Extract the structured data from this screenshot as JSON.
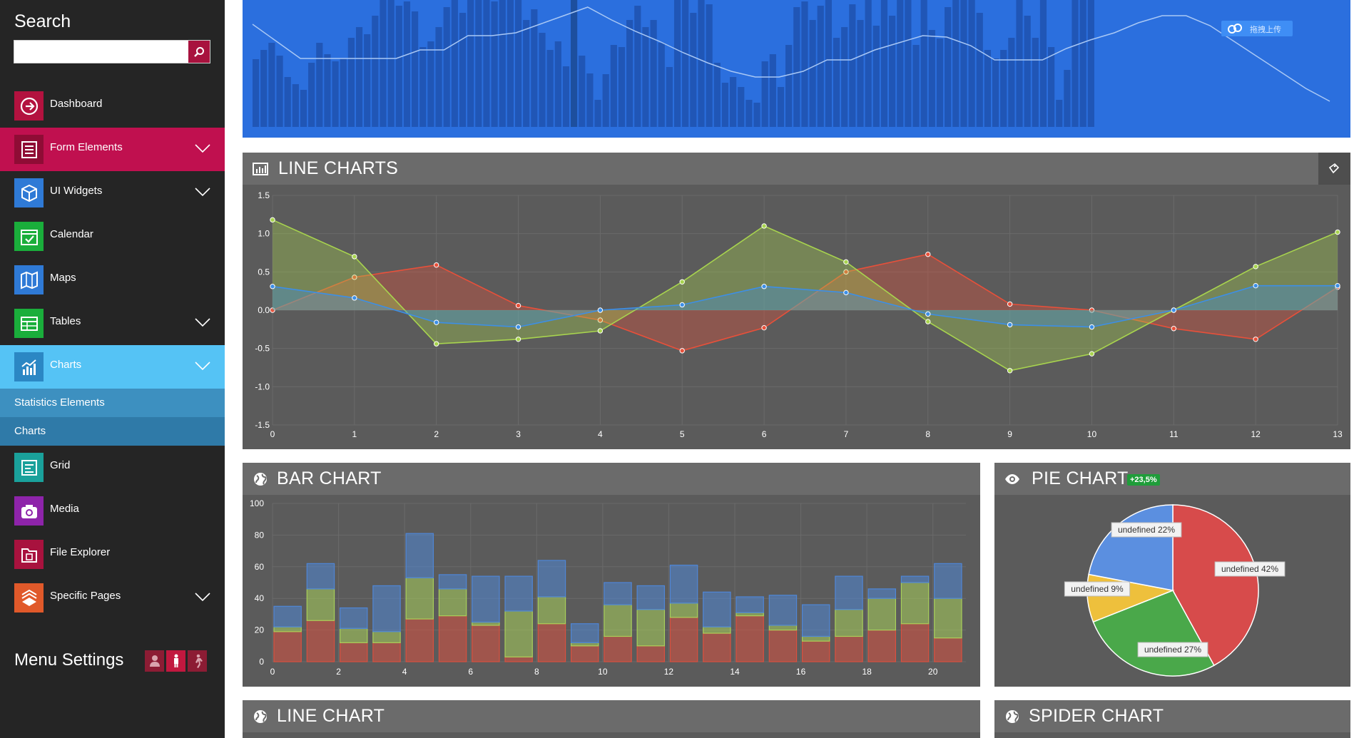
{
  "sidebar": {
    "search_title": "Search",
    "search_value": "",
    "items": [
      {
        "label": "Dashboard",
        "icon": "arrow-circle-icon",
        "color": "#b3123f",
        "top": 0
      },
      {
        "label": "Form Elements",
        "icon": "list-icon",
        "color": "#a8123e"
      },
      {
        "label": "UI Widgets",
        "icon": "cube-icon",
        "color": "#2f7ad6"
      },
      {
        "label": "Calendar",
        "icon": "calendar-icon",
        "color": "#1aae3b"
      },
      {
        "label": "Maps",
        "icon": "map-icon",
        "color": "#2f7ad6"
      },
      {
        "label": "Tables",
        "icon": "table-icon",
        "color": "#1aae3b"
      },
      {
        "label": "Charts",
        "icon": "chart-icon",
        "color": "#2b87c4"
      },
      {
        "label": "Grid",
        "icon": "grid-icon",
        "color": "#1aa19b"
      },
      {
        "label": "Media",
        "icon": "camera-icon",
        "color": "#8e24aa"
      },
      {
        "label": "File Explorer",
        "icon": "folder-icon",
        "color": "#a8123e"
      },
      {
        "label": "Specific Pages",
        "icon": "book-icon",
        "color": "#e0592a"
      }
    ],
    "submenu": [
      "Statistics Elements",
      "Charts"
    ],
    "menu_settings": "Menu Settings"
  },
  "banner": {
    "upload_label": "拖拽上传",
    "bars": [
      95,
      108,
      118,
      100,
      70,
      60,
      52,
      90,
      118,
      102,
      92,
      96,
      125,
      140,
      130,
      156,
      182,
      194,
      170,
      176,
      162,
      112,
      120,
      140,
      168,
      180,
      160,
      200,
      198,
      190,
      176,
      192,
      200,
      182,
      150,
      165,
      132,
      108,
      120,
      85,
      182,
      100,
      75,
      38,
      74,
      115,
      112,
      150,
      170,
      140,
      150,
      118,
      84,
      182,
      200,
      160,
      180,
      172,
      90,
      62,
      70,
      56,
      38,
      34,
      92,
      102,
      56,
      115,
      168,
      176,
      150,
      170,
      182,
      125,
      140,
      172,
      150,
      182,
      142,
      180,
      156,
      188,
      200,
      115,
      200,
      136,
      124,
      168,
      200,
      178,
      194,
      160,
      108,
      96,
      108,
      125,
      178,
      156,
      125,
      178,
      112,
      38,
      80,
      178,
      200,
      180
    ]
  },
  "line_charts": {
    "title": "LINE CHARTS",
    "chart_data": {
      "type": "area",
      "x": [
        0,
        1,
        2,
        3,
        4,
        5,
        6,
        7,
        8,
        9,
        10,
        11,
        12,
        13
      ],
      "ylim": [
        -1.5,
        1.5
      ],
      "yticks": [
        "1.5",
        "1.0",
        "0.5",
        "0.0",
        "-0.5",
        "-1.0",
        "-1.5"
      ],
      "series": [
        {
          "color": "#e8503a",
          "values": [
            0.0,
            0.43,
            0.59,
            0.06,
            -0.13,
            -0.53,
            -0.23,
            0.5,
            0.73,
            0.08,
            0.0,
            -0.24,
            -0.38,
            0.3
          ]
        },
        {
          "color": "#a8d44e",
          "values": [
            1.18,
            0.7,
            -0.44,
            -0.38,
            -0.27,
            0.37,
            1.1,
            0.63,
            -0.15,
            -0.79,
            -0.57,
            0.0,
            0.57,
            1.02
          ]
        },
        {
          "color": "#3d8fe6",
          "values": [
            0.31,
            0.16,
            -0.16,
            -0.22,
            0.0,
            0.07,
            0.31,
            0.23,
            -0.05,
            -0.19,
            -0.22,
            0.0,
            0.32,
            0.32
          ]
        }
      ]
    }
  },
  "bar_chart": {
    "title": "BAR CHART",
    "chart_data": {
      "type": "bar",
      "categories": [
        0,
        1,
        2,
        3,
        4,
        5,
        6,
        7,
        8,
        9,
        10,
        11,
        12,
        13,
        14,
        15,
        16,
        17,
        18,
        19,
        20
      ],
      "xticks": [
        "0",
        "2",
        "4",
        "6",
        "8",
        "10",
        "12",
        "14",
        "16",
        "18",
        "20"
      ],
      "yticks": [
        "100",
        "80",
        "60",
        "40",
        "20",
        "0"
      ],
      "ylim": [
        0,
        100
      ],
      "series": [
        {
          "color": "#d9503f",
          "values": [
            19,
            26,
            12,
            12,
            27,
            29,
            23,
            3,
            24,
            10,
            16,
            10,
            28,
            18,
            29,
            20,
            13,
            16,
            20,
            24,
            15
          ]
        },
        {
          "color": "#a8cf5a",
          "values": [
            3,
            20,
            9,
            7,
            26,
            17,
            2,
            29,
            17,
            2,
            20,
            23,
            9,
            4,
            2,
            3,
            3,
            17,
            20,
            26,
            25
          ]
        },
        {
          "color": "#4f86d6",
          "values": [
            13,
            16,
            13,
            29,
            28,
            9,
            29,
            22,
            23,
            12,
            14,
            15,
            24,
            22,
            10,
            19,
            20,
            21,
            6,
            4,
            22
          ]
        }
      ]
    }
  },
  "pie_chart": {
    "title": "PIE CHART",
    "badge": "+23,5%",
    "chart_data": {
      "type": "pie",
      "slices": [
        {
          "label": "undefined 42%",
          "value": 42,
          "color": "#d74b4b"
        },
        {
          "label": "undefined 27%",
          "value": 27,
          "color": "#4aa84a"
        },
        {
          "label": "undefined 9%",
          "value": 9,
          "color": "#eec03c"
        },
        {
          "label": "undefined 22%",
          "value": 22,
          "color": "#5b8fe0"
        }
      ]
    }
  },
  "line_chart_2": {
    "title": "LINE CHART"
  },
  "spider_chart": {
    "title": "SPIDER CHART"
  }
}
